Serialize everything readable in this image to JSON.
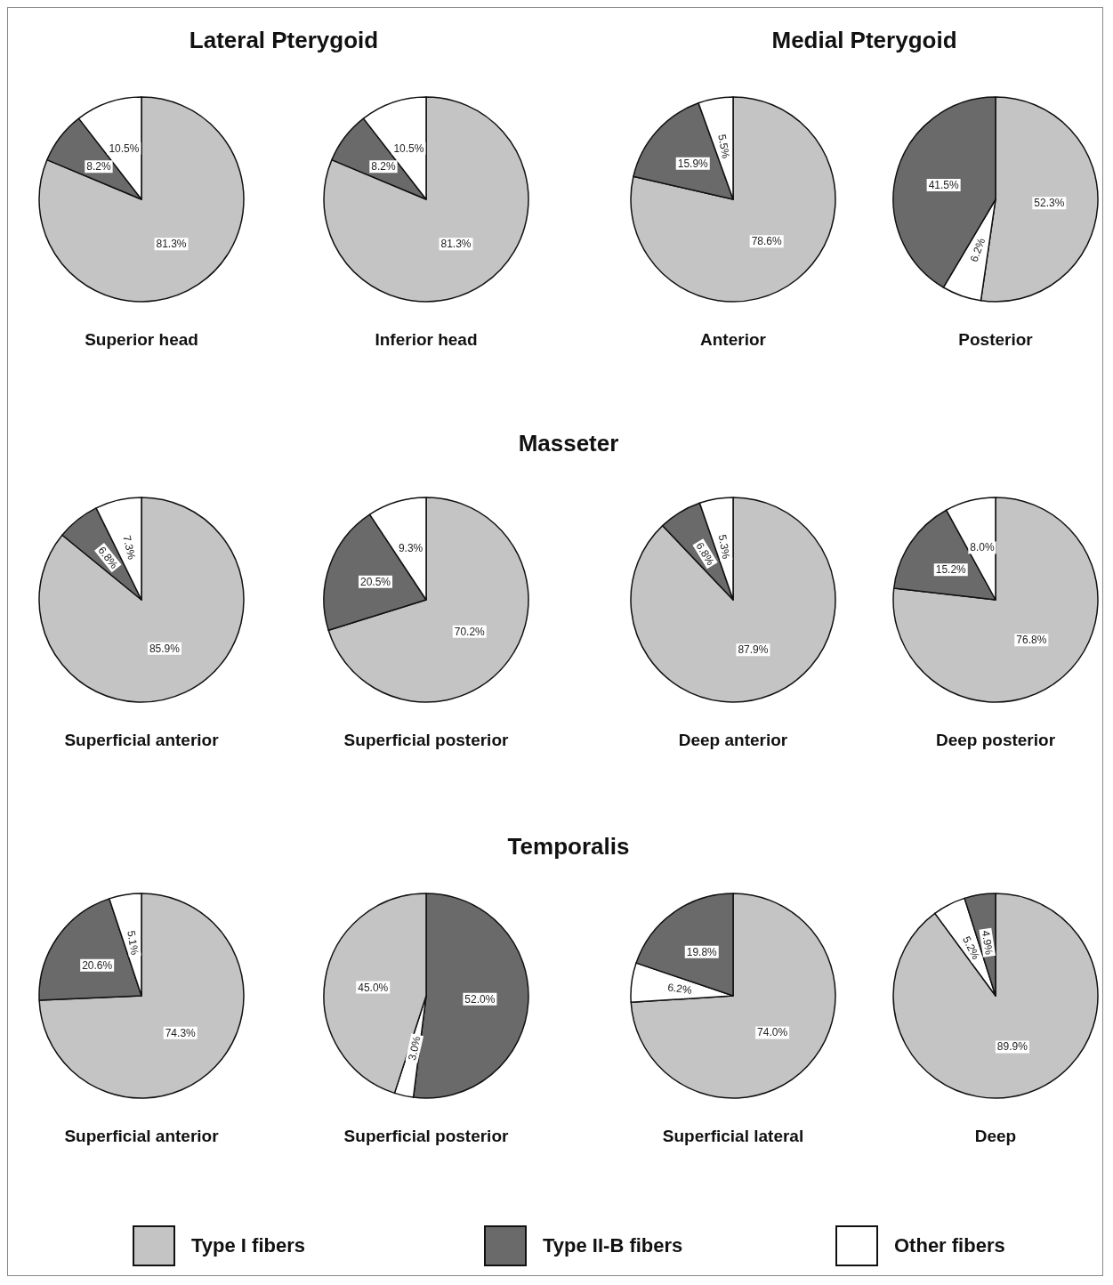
{
  "chart_data": [
    {
      "type": "pie",
      "title": "Superior head",
      "legend": "bottom",
      "annotations": [
        "Lateral Pterygoid"
      ],
      "categories": [
        "Type I fibers",
        "Type II-B fibers",
        "Other fibers"
      ],
      "values": [
        81.3,
        8.2,
        10.5
      ],
      "value_labels": [
        "81.3%",
        "8.2%",
        "10.5%"
      ],
      "colors": [
        "#c4c4c4",
        "#6a6a6a",
        "#ffffff"
      ]
    },
    {
      "type": "pie",
      "title": "Inferior head",
      "categories": [
        null,
        null,
        null
      ],
      "values": [
        81.3,
        8.2,
        10.5
      ],
      "value_labels": [
        "81.3%",
        "8.2%",
        "10.5%"
      ],
      "colors": [
        "#c4c4c4",
        "#6a6a6a",
        "#ffffff"
      ]
    },
    {
      "type": "pie",
      "title": "Anterior",
      "annotations": [
        "Medial Pterygoid"
      ],
      "categories": [
        null,
        null,
        null
      ],
      "values": [
        78.6,
        15.9,
        5.5
      ],
      "value_labels": [
        "78.6%",
        "15.9%",
        "5.5%"
      ],
      "colors": [
        "#c4c4c4",
        "#6a6a6a",
        "#ffffff"
      ]
    },
    {
      "type": "pie",
      "title": "Posterior",
      "categories": [
        null,
        null,
        null
      ],
      "values": [
        52.3,
        6.2,
        41.5
      ],
      "value_labels": [
        "52.3%",
        "6.2%",
        "41.5%"
      ],
      "colors": [
        "#c4c4c4",
        "#ffffff",
        "#6a6a6a"
      ]
    },
    {
      "type": "pie",
      "title": "Superficial anterior",
      "annotations": [
        "Masseter"
      ],
      "categories": [
        null,
        null,
        null
      ],
      "values": [
        85.9,
        6.8,
        7.3
      ],
      "value_labels": [
        "85.9%",
        "6.8%",
        "7.3%"
      ],
      "colors": [
        "#c4c4c4",
        "#6a6a6a",
        "#ffffff"
      ]
    },
    {
      "type": "pie",
      "title": "Superficial posterior",
      "categories": [
        null,
        null,
        null
      ],
      "values": [
        70.2,
        20.5,
        9.3
      ],
      "value_labels": [
        "70.2%",
        "20.5%",
        "9.3%"
      ],
      "colors": [
        "#c4c4c4",
        "#6a6a6a",
        "#ffffff"
      ]
    },
    {
      "type": "pie",
      "title": "Deep anterior",
      "categories": [
        null,
        null,
        null
      ],
      "values": [
        87.9,
        6.8,
        5.3
      ],
      "value_labels": [
        "87.9%",
        "6.8%",
        "5.3%"
      ],
      "colors": [
        "#c4c4c4",
        "#6a6a6a",
        "#ffffff"
      ]
    },
    {
      "type": "pie",
      "title": "Deep posterior",
      "categories": [
        null,
        null,
        null
      ],
      "values": [
        76.8,
        15.2,
        8.0
      ],
      "value_labels": [
        "76.8%",
        "15.2%",
        "8.0%"
      ],
      "colors": [
        "#c4c4c4",
        "#6a6a6a",
        "#ffffff"
      ]
    },
    {
      "type": "pie",
      "title": "Superficial anterior",
      "annotations": [
        "Temporalis"
      ],
      "categories": [
        null,
        null,
        null
      ],
      "values": [
        74.3,
        20.6,
        5.1
      ],
      "value_labels": [
        "74.3%",
        "20.6%",
        "5.1%"
      ],
      "colors": [
        "#c4c4c4",
        "#6a6a6a",
        "#ffffff"
      ]
    },
    {
      "type": "pie",
      "title": "Superficial posterior",
      "categories": [
        null,
        null,
        null
      ],
      "values": [
        52.0,
        3.0,
        45.0
      ],
      "value_labels": [
        "52.0%",
        "3.0%",
        "45.0%"
      ],
      "colors": [
        "#6a6a6a",
        "#ffffff",
        "#c4c4c4"
      ]
    },
    {
      "type": "pie",
      "title": "Superficial lateral",
      "categories": [
        null,
        null,
        null
      ],
      "values": [
        74.0,
        6.2,
        19.8
      ],
      "value_labels": [
        "74.0%",
        "6.2%",
        "19.8%"
      ],
      "colors": [
        "#c4c4c4",
        "#ffffff",
        "#6a6a6a"
      ]
    },
    {
      "type": "pie",
      "title": "Deep",
      "categories": [
        null,
        null,
        null
      ],
      "values": [
        89.9,
        5.2,
        4.9
      ],
      "value_labels": [
        "89.9%",
        "5.2%",
        "4.9%"
      ],
      "colors": [
        "#c4c4c4",
        "#ffffff",
        "#6a6a6a"
      ]
    }
  ]
}
